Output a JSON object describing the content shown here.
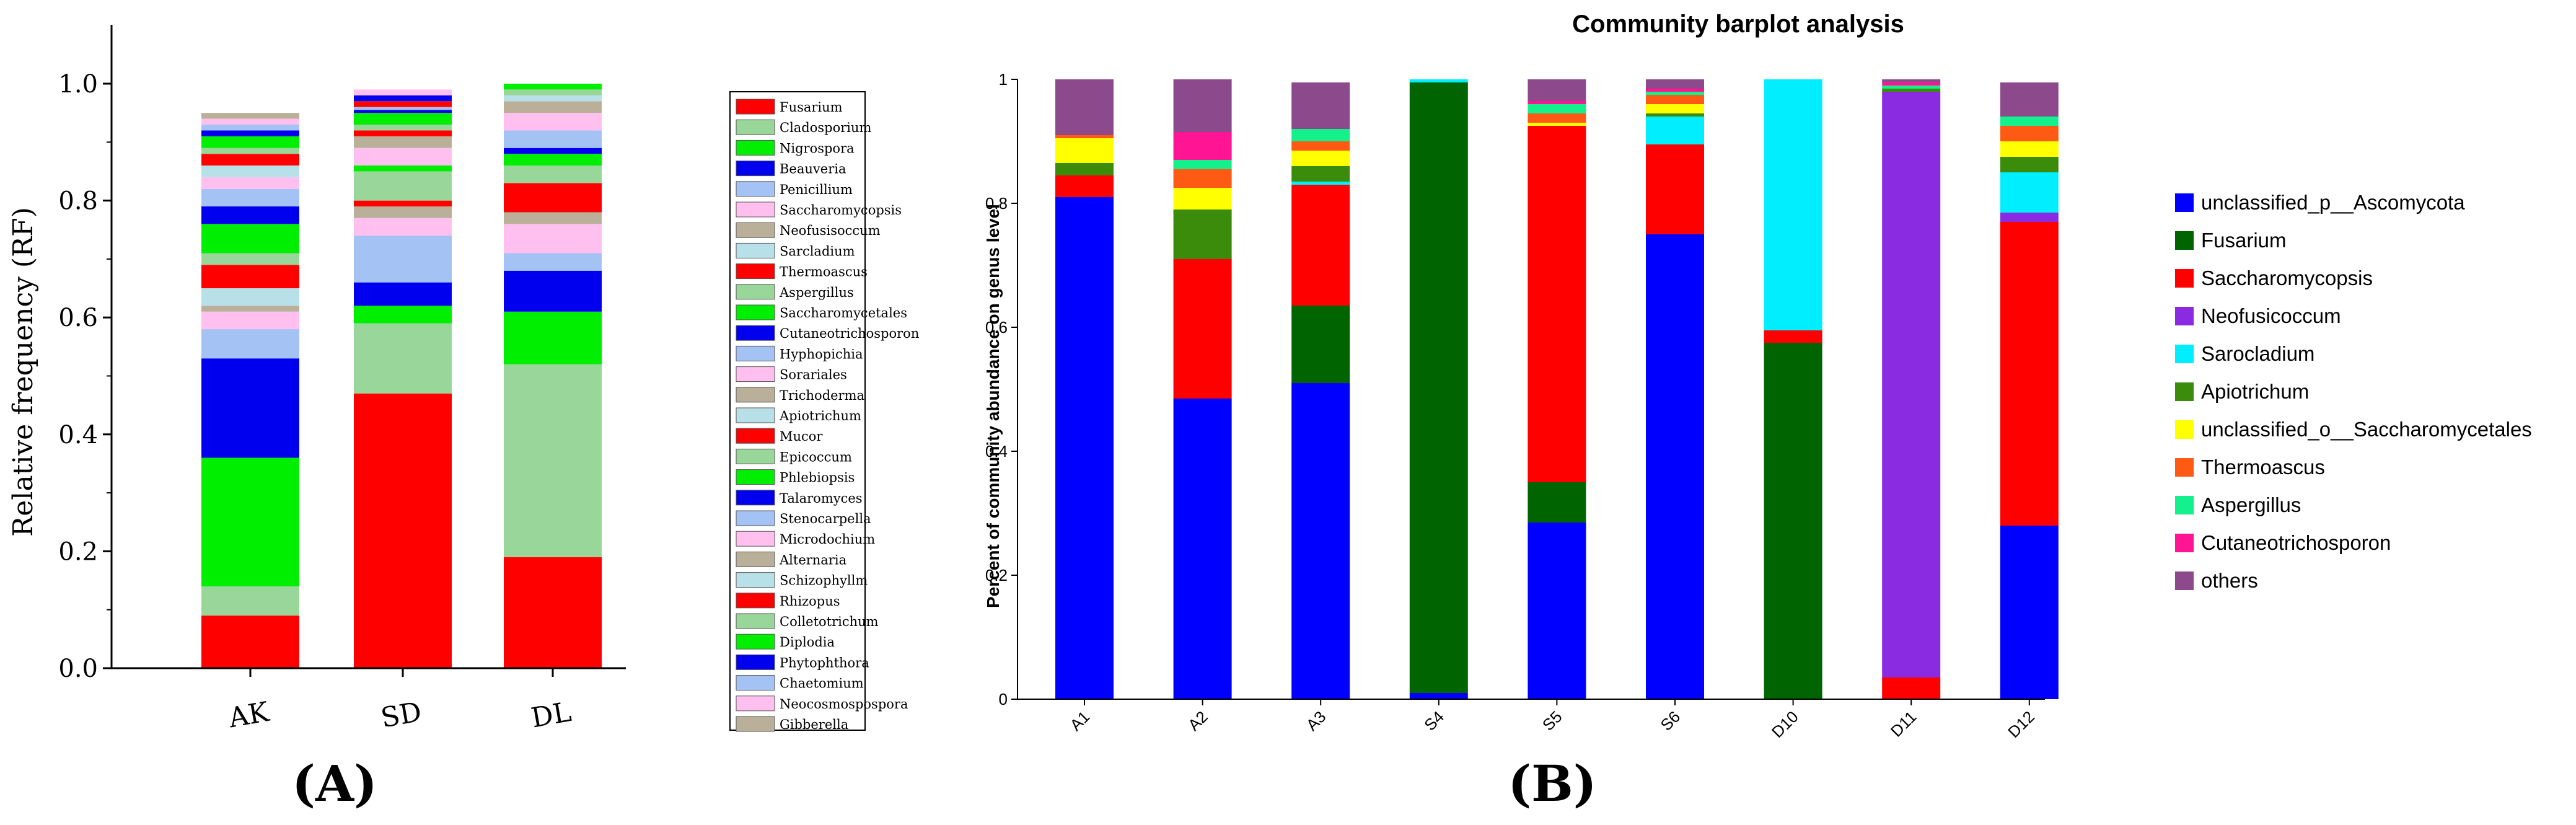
{
  "panel_a": {
    "label": "(A)",
    "chart_data": {
      "type": "bar",
      "stacked": true,
      "ylabel": "Relative frequency (RF)",
      "ylim": [
        0,
        1.0
      ],
      "yticks": [
        "0.0",
        "0.2",
        "0.4",
        "0.6",
        "0.8",
        "1.0"
      ],
      "categories": [
        "AK",
        "SD",
        "DL"
      ],
      "legend_placement": "right",
      "series": [
        {
          "name": "Fusarium",
          "color": "#ff0000",
          "values": [
            0.09,
            0.47,
            0.19
          ]
        },
        {
          "name": "Cladosporium",
          "color": "#99d699",
          "values": [
            0.05,
            0.12,
            0.33
          ]
        },
        {
          "name": "Nigrospora",
          "color": "#00ee00",
          "values": [
            0.22,
            0.03,
            0.09
          ]
        },
        {
          "name": "Beauveria",
          "color": "#0000ee",
          "values": [
            0.17,
            0.04,
            0.07
          ]
        },
        {
          "name": "Penicillium",
          "color": "#a4c2f4",
          "values": [
            0.05,
            0.08,
            0.03
          ]
        },
        {
          "name": "Saccharomycopsis",
          "color": "#ffc0f0",
          "values": [
            0.03,
            0.03,
            0.05
          ]
        },
        {
          "name": "Neofusisoccum",
          "color": "#bab09a",
          "values": [
            0.01,
            0.02,
            0.02
          ]
        },
        {
          "name": "Sarcladium",
          "color": "#b8e0e8",
          "values": [
            0.03,
            0.0,
            0.0
          ]
        },
        {
          "name": "Thermoascus",
          "color": "#ff0000",
          "values": [
            0.04,
            0.01,
            0.05
          ]
        },
        {
          "name": "Aspergillus",
          "color": "#99d699",
          "values": [
            0.02,
            0.05,
            0.03
          ]
        },
        {
          "name": "Saccharomycetales",
          "color": "#00ee00",
          "values": [
            0.05,
            0.01,
            0.02
          ]
        },
        {
          "name": "Cutaneotrichosporon",
          "color": "#0000ee",
          "values": [
            0.03,
            0.0,
            0.01
          ]
        },
        {
          "name": "Hyphopichia",
          "color": "#a4c2f4",
          "values": [
            0.03,
            0.0,
            0.03
          ]
        },
        {
          "name": "Sorariales",
          "color": "#ffc0f0",
          "values": [
            0.02,
            0.03,
            0.03
          ]
        },
        {
          "name": "Trichoderma",
          "color": "#bab09a",
          "values": [
            0.0,
            0.02,
            0.02
          ]
        },
        {
          "name": "Apiotrichum",
          "color": "#b8e0e8",
          "values": [
            0.02,
            0.0,
            0.01
          ]
        },
        {
          "name": "Mucor",
          "color": "#ff0000",
          "values": [
            0.02,
            0.01,
            0.0
          ]
        },
        {
          "name": "Epicoccum",
          "color": "#99d699",
          "values": [
            0.01,
            0.01,
            0.01
          ]
        },
        {
          "name": "Phlebiopsis",
          "color": "#00ee00",
          "values": [
            0.02,
            0.02,
            0.01
          ]
        },
        {
          "name": "Talaromyces",
          "color": "#0000ee",
          "values": [
            0.01,
            0.005,
            0.0
          ]
        },
        {
          "name": "Stenocarpella",
          "color": "#a4c2f4",
          "values": [
            0.01,
            0.005,
            0.0
          ]
        },
        {
          "name": "Microdochium",
          "color": "#ffc0f0",
          "values": [
            0.01,
            0.0,
            0.0
          ]
        },
        {
          "name": "Alternaria",
          "color": "#bab09a",
          "values": [
            0.01,
            0.0,
            0.0
          ]
        },
        {
          "name": "Schizophyllm",
          "color": "#b8e0e8",
          "values": [
            0.0,
            0.0,
            0.0
          ]
        },
        {
          "name": "Rhizopus",
          "color": "#ff0000",
          "values": [
            0.0,
            0.01,
            0.0
          ]
        },
        {
          "name": "Colletotrichum",
          "color": "#99d699",
          "values": [
            0.0,
            0.0,
            0.0
          ]
        },
        {
          "name": "Diplodia",
          "color": "#00ee00",
          "values": [
            0.0,
            0.0,
            0.0
          ]
        },
        {
          "name": "Phytophthora",
          "color": "#0000ee",
          "values": [
            0.0,
            0.01,
            0.0
          ]
        },
        {
          "name": "Chaetomium",
          "color": "#a4c2f4",
          "values": [
            0.0,
            0.0,
            0.0
          ]
        },
        {
          "name": "Neocosmospospora",
          "color": "#ffc0f0",
          "values": [
            0.0,
            0.01,
            0.0
          ]
        },
        {
          "name": "Gibberella",
          "color": "#bab09a",
          "values": [
            0.0,
            0.0,
            0.0
          ]
        }
      ]
    }
  },
  "panel_b": {
    "label": "(B)",
    "chart_data": {
      "type": "bar",
      "stacked": true,
      "title": "Community barplot analysis",
      "ylabel": "Percent of community abundance on genus level",
      "ylim": [
        0,
        1
      ],
      "yticks": [
        "0",
        "0.2",
        "0.4",
        "0.6",
        "0.8",
        "1"
      ],
      "categories": [
        "A1",
        "A2",
        "A3",
        "S4",
        "S5",
        "S6",
        "D10",
        "D11",
        "D12"
      ],
      "legend_placement": "right",
      "series": [
        {
          "name": "unclassified_p__Ascomycota",
          "color": "#0000ff",
          "values": [
            0.81,
            0.485,
            0.51,
            0.01,
            0.285,
            0.75,
            0.0,
            0.0,
            0.28
          ]
        },
        {
          "name": "Fusarium",
          "color": "#006400",
          "values": [
            0.0,
            0.0,
            0.125,
            0.985,
            0.065,
            0.0,
            0.575,
            0.0,
            0.0
          ]
        },
        {
          "name": "Saccharomycopsis",
          "color": "#ff0000",
          "values": [
            0.035,
            0.225,
            0.195,
            0.0,
            0.575,
            0.145,
            0.02,
            0.035,
            0.49
          ]
        },
        {
          "name": "Neofusicoccum",
          "color": "#8a2be2",
          "values": [
            0.0,
            0.0,
            0.0,
            0.0,
            0.0,
            0.0,
            0.0,
            0.945,
            0.015
          ]
        },
        {
          "name": "Sarocladium",
          "color": "#00eeff",
          "values": [
            0.0,
            0.0,
            0.005,
            0.005,
            0.0,
            0.045,
            0.405,
            0.0,
            0.065
          ]
        },
        {
          "name": "Apiotrichum",
          "color": "#3c8c0c",
          "values": [
            0.02,
            0.08,
            0.025,
            0.0,
            0.0,
            0.005,
            0.0,
            0.005,
            0.025
          ]
        },
        {
          "name": "unclassified_o__Saccharomycetales",
          "color": "#ffff00",
          "values": [
            0.04,
            0.035,
            0.025,
            0.0,
            0.005,
            0.015,
            0.0,
            0.0,
            0.025
          ]
        },
        {
          "name": "Thermoascus",
          "color": "#ff5a14",
          "values": [
            0.005,
            0.03,
            0.015,
            0.0,
            0.015,
            0.015,
            0.0,
            0.0,
            0.025
          ]
        },
        {
          "name": "Aspergillus",
          "color": "#14f08c",
          "values": [
            0.0,
            0.015,
            0.02,
            0.0,
            0.015,
            0.005,
            0.0,
            0.005,
            0.015
          ]
        },
        {
          "name": "Cutaneotrichosporon",
          "color": "#ff1493",
          "values": [
            0.0,
            0.045,
            0.0,
            0.0,
            0.005,
            0.005,
            0.0,
            0.005,
            0.0
          ]
        },
        {
          "name": "others",
          "color": "#8c4a8c",
          "values": [
            0.09,
            0.085,
            0.075,
            0.0,
            0.035,
            0.015,
            0.0,
            0.005,
            0.055
          ]
        }
      ]
    }
  }
}
